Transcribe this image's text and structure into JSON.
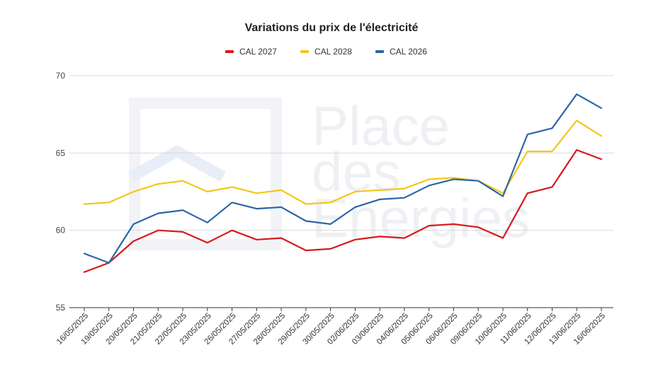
{
  "chart_data": {
    "type": "line",
    "title": "Variations du prix de l'électricité",
    "xlabel": "",
    "ylabel": "",
    "ylim": [
      55,
      70
    ],
    "yticks": [
      55,
      60,
      65,
      70
    ],
    "grid": true,
    "legend_position": "top-center",
    "categories": [
      "16/05/2025",
      "19/05/2025",
      "20/05/2025",
      "21/05/2025",
      "22/05/2025",
      "23/05/2025",
      "26/05/2025",
      "27/05/2025",
      "28/05/2025",
      "29/05/2025",
      "30/05/2025",
      "02/06/2025",
      "03/06/2025",
      "04/06/2025",
      "05/06/2025",
      "06/06/2025",
      "09/06/2025",
      "10/06/2025",
      "11/06/2025",
      "12/06/2025",
      "13/06/2025",
      "16/06/2025"
    ],
    "series": [
      {
        "name": "CAL 2027",
        "color": "#d7191c",
        "values": [
          57.3,
          57.9,
          59.3,
          60.0,
          59.9,
          59.2,
          60.0,
          59.4,
          59.5,
          58.7,
          58.8,
          59.4,
          59.6,
          59.5,
          60.3,
          60.4,
          60.2,
          59.5,
          62.4,
          62.8,
          65.2,
          64.6
        ]
      },
      {
        "name": "CAL 2028",
        "color": "#f5c518",
        "values": [
          61.7,
          61.8,
          62.5,
          63.0,
          63.2,
          62.5,
          62.8,
          62.4,
          62.6,
          61.7,
          61.8,
          62.5,
          62.6,
          62.7,
          63.3,
          63.4,
          63.2,
          62.4,
          65.1,
          65.1,
          67.1,
          66.1
        ]
      },
      {
        "name": "CAL 2026",
        "color": "#2c66a6",
        "values": [
          58.5,
          57.9,
          60.4,
          61.1,
          61.3,
          60.5,
          61.8,
          61.4,
          61.5,
          60.6,
          60.4,
          61.5,
          62.0,
          62.1,
          62.9,
          63.3,
          63.2,
          62.2,
          66.2,
          66.6,
          68.8,
          67.9
        ]
      }
    ]
  },
  "watermark": {
    "lines": [
      "Place",
      "des",
      "Energies"
    ]
  }
}
